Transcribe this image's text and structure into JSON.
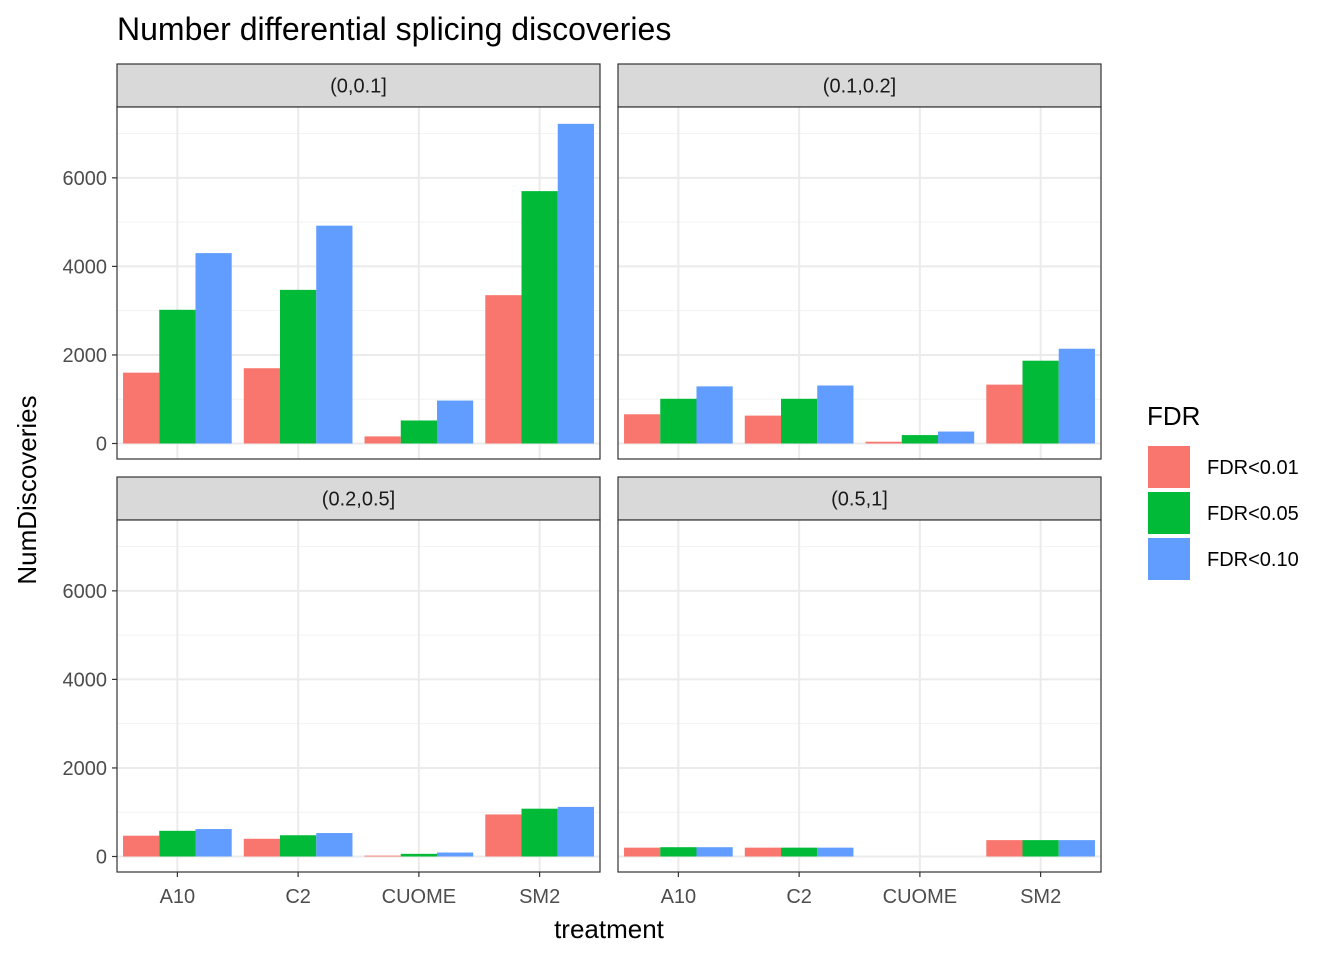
{
  "chart_data": {
    "type": "bar",
    "title": "Number differential splicing discoveries",
    "xlabel": "treatment",
    "ylabel": "NumDiscoveries",
    "ylim": [
      -350,
      7600
    ],
    "yticks": [
      0,
      2000,
      4000,
      6000
    ],
    "categories": [
      "A10",
      "C2",
      "CUOME",
      "SM2"
    ],
    "legend": {
      "title": "FDR",
      "position": "right",
      "items": [
        {
          "label": "FDR<0.01",
          "color": "#F8766D"
        },
        {
          "label": "FDR<0.05",
          "color": "#00BA38"
        },
        {
          "label": "FDR<0.10",
          "color": "#619CFF"
        }
      ]
    },
    "panels": [
      {
        "label": "(0,0.1]",
        "series": [
          {
            "name": "FDR<0.01",
            "values": [
              1600,
              1700,
              160,
              3350
            ]
          },
          {
            "name": "FDR<0.05",
            "values": [
              3020,
              3470,
              520,
              5700
            ]
          },
          {
            "name": "FDR<0.10",
            "values": [
              4300,
              4920,
              970,
              7220
            ]
          }
        ]
      },
      {
        "label": "(0.1,0.2]",
        "series": [
          {
            "name": "FDR<0.01",
            "values": [
              660,
              630,
              40,
              1330
            ]
          },
          {
            "name": "FDR<0.05",
            "values": [
              1010,
              1010,
              190,
              1870
            ]
          },
          {
            "name": "FDR<0.10",
            "values": [
              1290,
              1310,
              270,
              2140
            ]
          }
        ]
      },
      {
        "label": "(0.2,0.5]",
        "series": [
          {
            "name": "FDR<0.01",
            "values": [
              470,
              400,
              20,
              950
            ]
          },
          {
            "name": "FDR<0.05",
            "values": [
              580,
              480,
              60,
              1080
            ]
          },
          {
            "name": "FDR<0.10",
            "values": [
              620,
              530,
              90,
              1120
            ]
          }
        ]
      },
      {
        "label": "(0.5,1]",
        "series": [
          {
            "name": "FDR<0.01",
            "values": [
              200,
              200,
              0,
              370
            ]
          },
          {
            "name": "FDR<0.05",
            "values": [
              210,
              200,
              0,
              370
            ]
          },
          {
            "name": "FDR<0.10",
            "values": [
              210,
              200,
              0,
              370
            ]
          }
        ]
      }
    ]
  }
}
